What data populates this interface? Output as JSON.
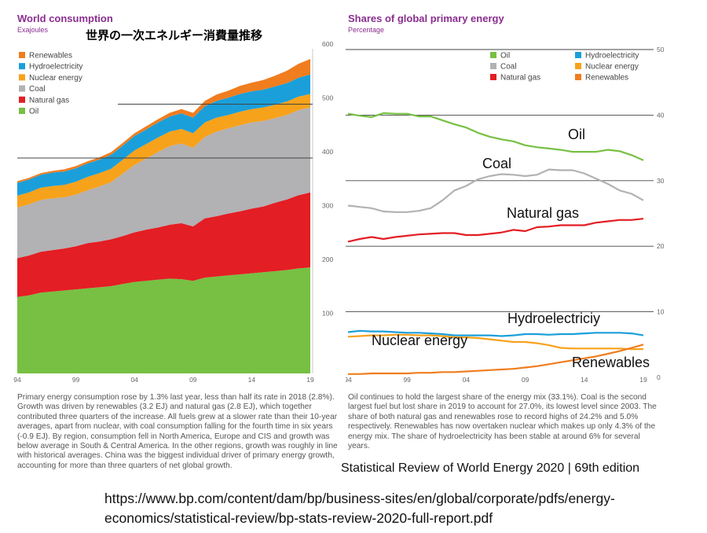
{
  "left_panel": {
    "title": "World consumption",
    "subtitle": "Exajoules",
    "jp_title": "世界の一次エネルギー消費量推移",
    "body_text": "Primary energy consumption rose by 1.3% last year, less than half its rate in 2018 (2.8%). Growth was driven by renewables (3.2 EJ) and natural gas (2.8 EJ), which together contributed three quarters of the increase. All fuels grew at a slower rate than their 10-year averages, apart from nuclear, with coal consumption falling for the fourth time in six years (-0.9 EJ). By region, consumption fell in North America, Europe and CIS and growth was below average in South & Central America. In the other regions, growth was roughly in line with historical averages. China was the biggest individual driver of primary energy growth, accounting for more than three quarters of net global growth."
  },
  "right_panel": {
    "title": "Shares of global primary energy",
    "subtitle": "Percentage",
    "body_text": "Oil continues to hold the largest share of the energy mix (33.1%). Coal is the second largest fuel but lost share in 2019 to account for 27.0%, its lowest level since 2003. The share of both natural gas and renewables rose to record highs of 24.2% and 5.0% respectively. Renewables has now overtaken nuclear which makes up only 4.3% of the energy mix. The share of hydroelectricity has been stable at around 6% for several years."
  },
  "source_text": "Statistical Review of World Energy 2020 | 69th edition",
  "url_text": "https://www.bp.com/content/dam/bp/business-sites/en/global/corporate/pdfs/energy-economics/statistical-review/bp-stats-review-2020-full-report.pdf",
  "chart_data": [
    {
      "type": "area",
      "title": "World consumption",
      "subtitle": "Exajoules",
      "stacked": true,
      "x": [
        1994,
        1995,
        1996,
        1997,
        1998,
        1999,
        2000,
        2001,
        2002,
        2003,
        2004,
        2005,
        2006,
        2007,
        2008,
        2009,
        2010,
        2011,
        2012,
        2013,
        2014,
        2015,
        2016,
        2017,
        2018,
        2019
      ],
      "x_tick_labels": [
        "94",
        "99",
        "04",
        "09",
        "14",
        "19"
      ],
      "x_tick_values": [
        1994,
        1999,
        2004,
        2009,
        2014,
        2019
      ],
      "ylim": [
        0,
        600
      ],
      "y_ticks": [
        100,
        200,
        300,
        400,
        500,
        600
      ],
      "y_axis_position": "right",
      "legend_position": "top-left",
      "series": [
        {
          "name": "Oil",
          "color": "#77c043",
          "values": [
            142,
            145,
            150,
            152,
            154,
            156,
            158,
            160,
            162,
            166,
            170,
            172,
            174,
            176,
            175,
            172,
            178,
            180,
            182,
            184,
            186,
            188,
            190,
            192,
            195,
            197
          ]
        },
        {
          "name": "Natural gas",
          "color": "#e31e24",
          "values": [
            72,
            74,
            76,
            77,
            78,
            80,
            84,
            85,
            87,
            89,
            92,
            95,
            97,
            100,
            104,
            101,
            110,
            112,
            115,
            117,
            120,
            122,
            127,
            131,
            136,
            139
          ]
        },
        {
          "name": "Coal",
          "color": "#b2b1b4",
          "values": [
            94,
            95,
            96,
            96,
            95,
            96,
            98,
            102,
            106,
            116,
            125,
            132,
            140,
            146,
            148,
            146,
            151,
            157,
            158,
            160,
            160,
            159,
            157,
            157,
            158,
            158
          ]
        },
        {
          "name": "Nuclear energy",
          "color": "#f7a21b",
          "values": [
            22,
            22,
            23,
            23,
            23,
            24,
            25,
            25,
            25,
            26,
            27,
            27,
            27,
            27,
            27,
            27,
            27,
            26,
            25,
            25,
            25,
            25,
            25,
            25,
            25,
            25
          ]
        },
        {
          "name": "Hydroelectricity",
          "color": "#1b9fda",
          "values": [
            24,
            24,
            24,
            25,
            25,
            25,
            25,
            25,
            26,
            26,
            27,
            27,
            28,
            28,
            29,
            29,
            30,
            31,
            32,
            33,
            33,
            33,
            34,
            34,
            35,
            36
          ]
        },
        {
          "name": "Renewables",
          "color": "#f07d1e",
          "values": [
            3,
            3,
            3,
            3,
            4,
            4,
            4,
            4,
            5,
            5,
            5,
            6,
            6,
            7,
            8,
            9,
            10,
            12,
            13,
            15,
            16,
            18,
            20,
            23,
            26,
            29
          ]
        }
      ]
    },
    {
      "type": "line",
      "title": "Shares of global primary energy",
      "subtitle": "Percentage",
      "x": [
        1994,
        1995,
        1996,
        1997,
        1998,
        1999,
        2000,
        2001,
        2002,
        2003,
        2004,
        2005,
        2006,
        2007,
        2008,
        2009,
        2010,
        2011,
        2012,
        2013,
        2014,
        2015,
        2016,
        2017,
        2018,
        2019
      ],
      "x_tick_labels": [
        "94",
        "99",
        "04",
        "09",
        "14",
        "19"
      ],
      "x_tick_values": [
        1994,
        1999,
        2004,
        2009,
        2014,
        2019
      ],
      "ylim": [
        0,
        50
      ],
      "y_ticks": [
        0,
        10,
        20,
        30,
        40,
        50
      ],
      "y_tick_labels": [
        "0",
        "10",
        "20",
        "30",
        "40",
        "50"
      ],
      "y_axis_position": "right",
      "legend_position": "top-right",
      "series": [
        {
          "name": "Oil",
          "label": "Oil",
          "color": "#77c043",
          "values": [
            40.2,
            39.9,
            39.7,
            40.3,
            40.2,
            40.2,
            39.8,
            39.8,
            39.2,
            38.6,
            38.1,
            37.3,
            36.7,
            36.3,
            36.0,
            35.4,
            35.1,
            34.9,
            34.7,
            34.4,
            34.4,
            34.4,
            34.7,
            34.5,
            33.9,
            33.1
          ]
        },
        {
          "name": "Coal",
          "label": "Coal",
          "color": "#b2b1b4",
          "values": [
            26.2,
            26.0,
            25.8,
            25.3,
            25.2,
            25.2,
            25.4,
            25.8,
            27.0,
            28.5,
            29.2,
            30.2,
            30.7,
            31.0,
            30.9,
            30.7,
            30.9,
            31.7,
            31.6,
            31.6,
            31.1,
            30.3,
            29.5,
            28.5,
            28.0,
            27.0
          ]
        },
        {
          "name": "Natural gas",
          "label": "Natural gas",
          "color": "#e31e24",
          "values": [
            20.7,
            21.1,
            21.4,
            21.1,
            21.4,
            21.6,
            21.8,
            21.9,
            22.0,
            22.0,
            21.7,
            21.7,
            21.9,
            22.1,
            22.5,
            22.3,
            22.9,
            23.0,
            23.2,
            23.2,
            23.2,
            23.6,
            23.8,
            24.0,
            24.0,
            24.2
          ]
        },
        {
          "name": "Hydroelectricity",
          "label": "Hydroelectriciy",
          "color": "#1b9fda",
          "values": [
            6.9,
            7.1,
            7.0,
            7.0,
            6.9,
            6.8,
            6.8,
            6.7,
            6.6,
            6.4,
            6.4,
            6.4,
            6.4,
            6.3,
            6.4,
            6.6,
            6.6,
            6.5,
            6.6,
            6.6,
            6.7,
            6.8,
            6.8,
            6.8,
            6.7,
            6.4
          ]
        },
        {
          "name": "Nuclear energy",
          "label": "Nuclear energy",
          "color": "#f7a21b",
          "values": [
            6.2,
            6.3,
            6.4,
            6.4,
            6.5,
            6.5,
            6.4,
            6.4,
            6.3,
            6.1,
            6.1,
            6.0,
            5.8,
            5.6,
            5.4,
            5.4,
            5.2,
            4.9,
            4.5,
            4.4,
            4.4,
            4.4,
            4.4,
            4.4,
            4.3,
            4.3
          ]
        },
        {
          "name": "Renewables",
          "label": "Renewables",
          "color": "#f07d1e",
          "values": [
            0.5,
            0.5,
            0.6,
            0.6,
            0.6,
            0.6,
            0.7,
            0.7,
            0.8,
            0.8,
            0.9,
            1.0,
            1.1,
            1.2,
            1.3,
            1.5,
            1.7,
            2.0,
            2.3,
            2.6,
            2.9,
            3.2,
            3.6,
            4.0,
            4.5,
            5.0
          ]
        }
      ]
    }
  ]
}
